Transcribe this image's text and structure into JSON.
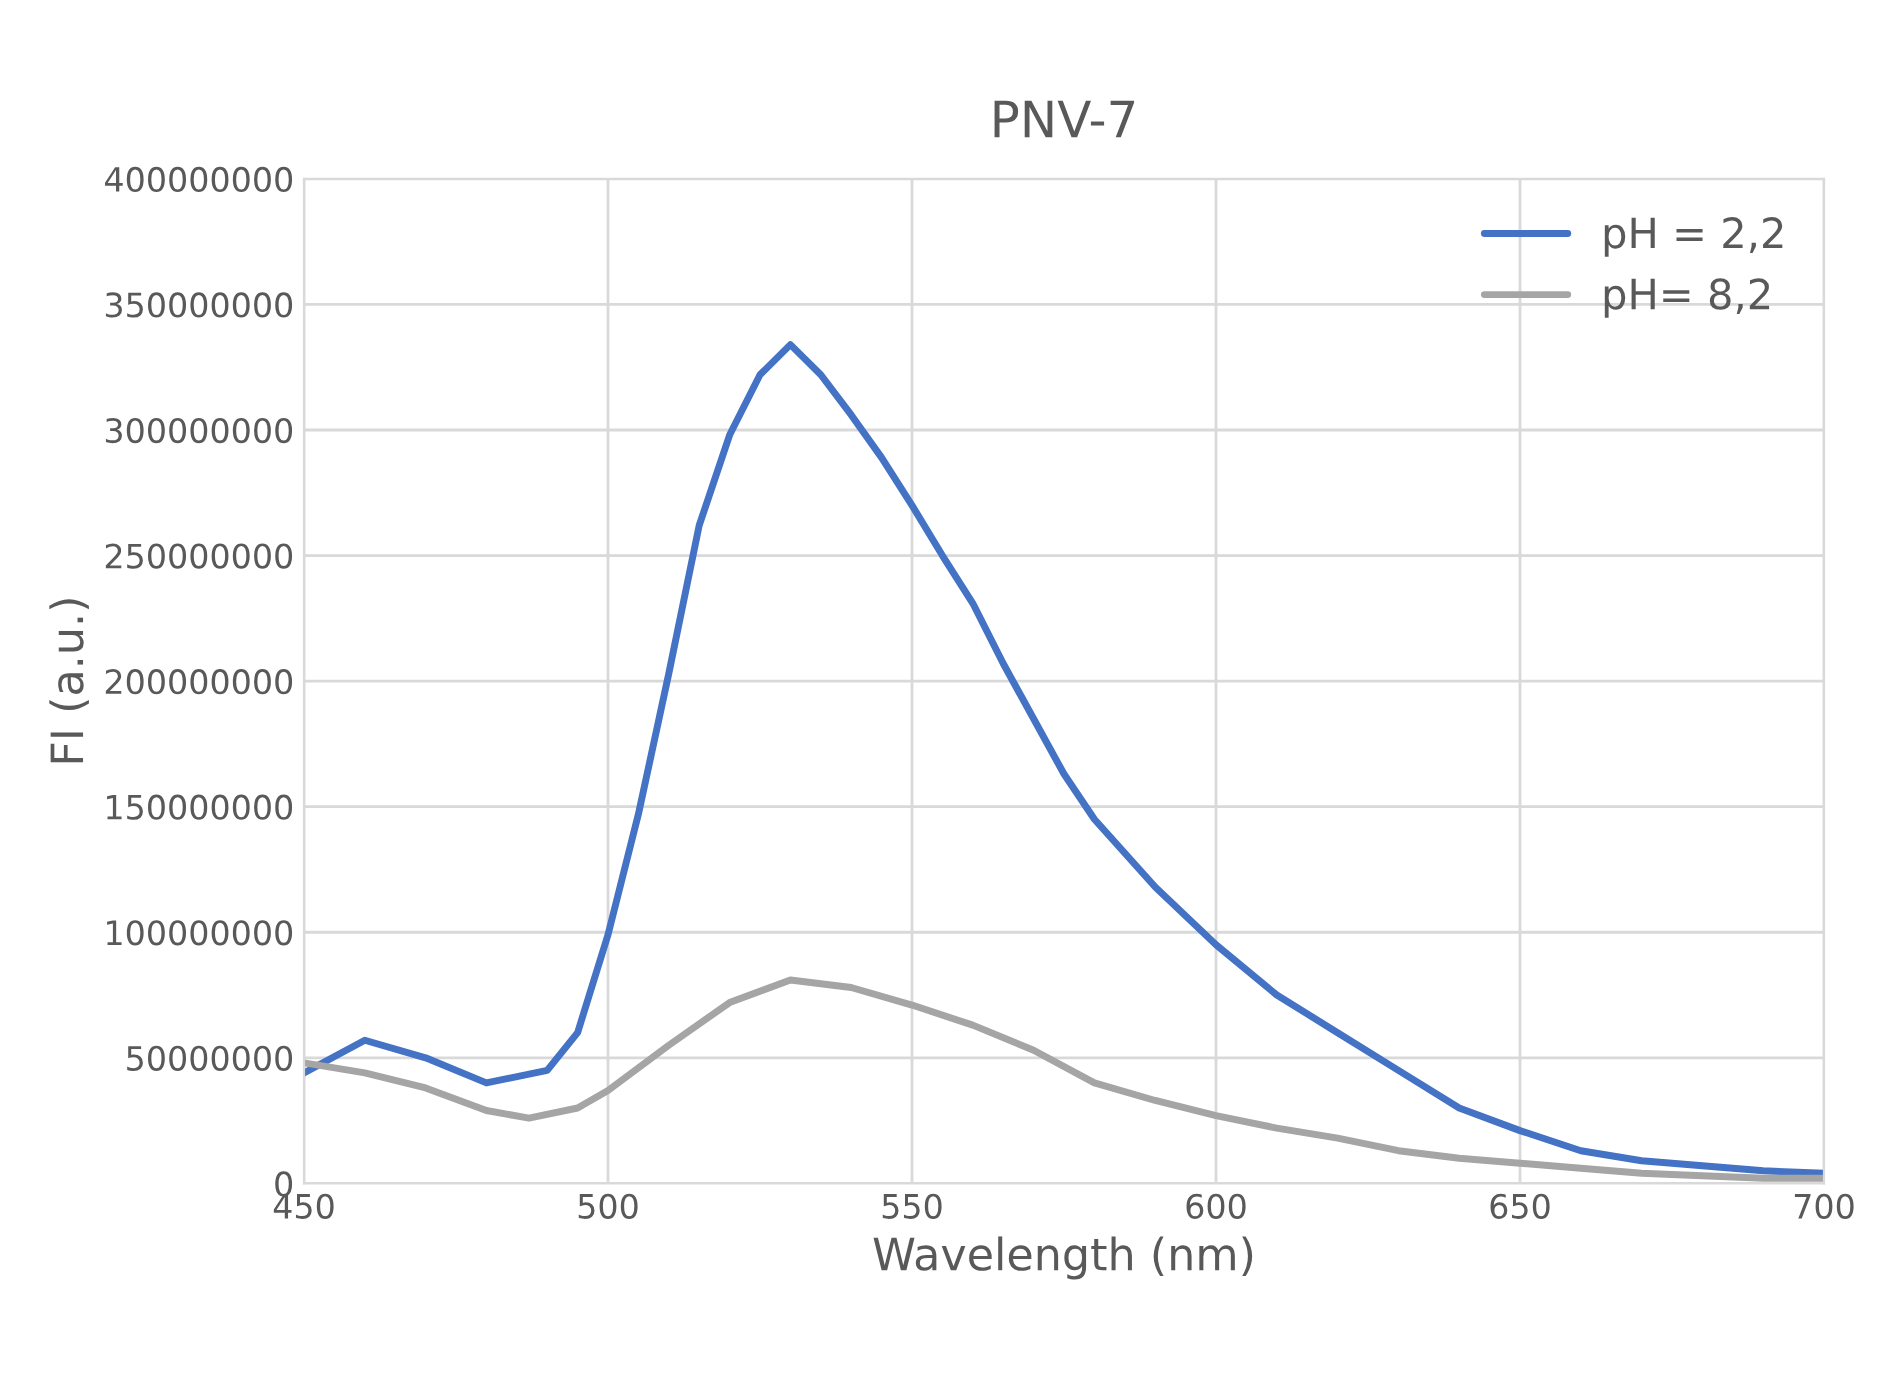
{
  "chart_data": {
    "type": "line",
    "title": "PNV-7",
    "xlabel": "Wavelength (nm)",
    "ylabel": "FI (a.u.)",
    "xlim": [
      450,
      700
    ],
    "xticks": [
      450,
      500,
      550,
      600,
      650,
      700
    ],
    "ylim": [
      0,
      400000000
    ],
    "yticks": [
      0,
      50000000,
      100000000,
      150000000,
      200000000,
      250000000,
      300000000,
      350000000,
      400000000
    ],
    "grid": true,
    "legend": "top right",
    "marker": "none",
    "line_style": "solid",
    "series": [
      {
        "name": "pH = 2,2",
        "color": "#4472c4",
        "x": [
          450,
          460,
          470,
          480,
          490,
          495,
          500,
          505,
          510,
          515,
          520,
          525,
          530,
          535,
          540,
          545,
          550,
          555,
          560,
          565,
          570,
          575,
          580,
          590,
          600,
          610,
          620,
          630,
          640,
          650,
          660,
          670,
          680,
          690,
          700
        ],
        "values": [
          44000000,
          57000000,
          50000000,
          40000000,
          45000000,
          60000000,
          99000000,
          147000000,
          203000000,
          262000000,
          298000000,
          322000000,
          334000000,
          322000000,
          306000000,
          289000000,
          270000000,
          250000000,
          231000000,
          207000000,
          185000000,
          163000000,
          145000000,
          118000000,
          95000000,
          75000000,
          60000000,
          45000000,
          30000000,
          21000000,
          13000000,
          9000000,
          7000000,
          5000000,
          4000000
        ]
      },
      {
        "name": "pH= 8,2",
        "color": "#a5a5a5",
        "x": [
          450,
          460,
          470,
          480,
          487,
          495,
          500,
          510,
          520,
          530,
          540,
          550,
          560,
          570,
          580,
          590,
          600,
          610,
          620,
          630,
          640,
          650,
          660,
          670,
          680,
          690,
          700
        ],
        "values": [
          48000000,
          44000000,
          38000000,
          29000000,
          26000000,
          30000000,
          37000000,
          55000000,
          72000000,
          81000000,
          78000000,
          71000000,
          63000000,
          53000000,
          40000000,
          33000000,
          27000000,
          22000000,
          18000000,
          13000000,
          10000000,
          8000000,
          6000000,
          4000000,
          3000000,
          2000000,
          2000000
        ]
      }
    ]
  }
}
